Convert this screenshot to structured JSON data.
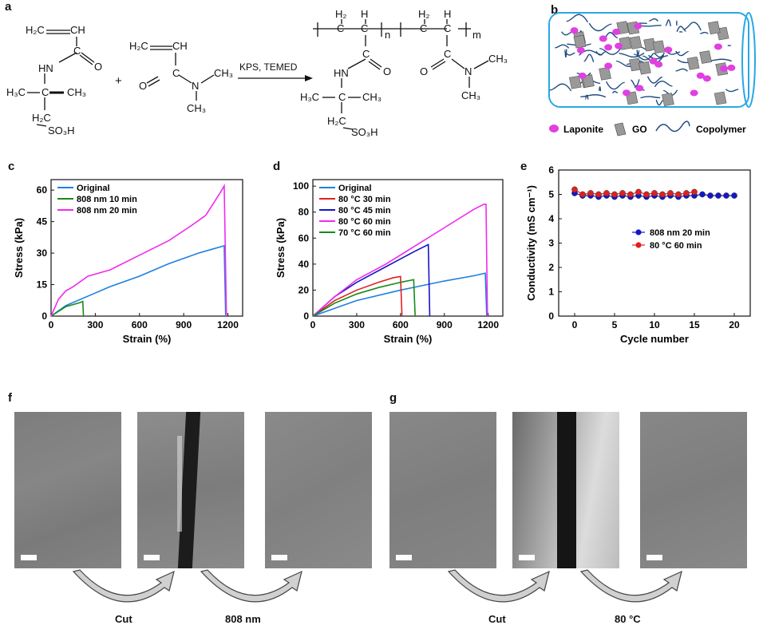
{
  "panel_labels": {
    "a": "a",
    "b": "b",
    "c": "c",
    "d": "d",
    "e": "e",
    "f": "f",
    "g": "g"
  },
  "scheme": {
    "monomer1": {
      "vinyl_left": "H₂C",
      "vinyl_right": "CH",
      "nh": "HN",
      "carbonyl_c": "C",
      "carbonyl_o": "O",
      "h3c": "H₃C",
      "quat_c": "C",
      "ch3": "CH₃",
      "h2c": "H₂C",
      "so3h": "SO₃H"
    },
    "plus": "+",
    "monomer2": {
      "vinyl_left": "H₂C",
      "vinyl_right": "CH",
      "o": "O",
      "c": "C",
      "n": "N",
      "ch3_right": "CH₃",
      "ch3_down": "CH₃"
    },
    "reagents": "KPS, TEMED",
    "polymer": {
      "h2_a": "H₂",
      "h_a": "H",
      "c1": "C",
      "c2": "C",
      "n": "n",
      "h2_b": "H₂",
      "h_b": "H",
      "c3": "C",
      "c4": "C",
      "m": "m",
      "c_amide": "C",
      "hn": "HN",
      "o_amide": "O",
      "h3c": "H₃C",
      "quat_c": "C",
      "ch3": "CH₃",
      "h2c": "H₂C",
      "so3h": "SO₃H",
      "o2": "O",
      "c_amide2": "C",
      "n2": "N",
      "ch3_right": "CH₃",
      "ch3_down": "CH₃"
    }
  },
  "legend_b": {
    "laponite": "Laponite",
    "go": "GO",
    "copolymer": "Copolymer"
  },
  "colors": {
    "original": "#1f7fe0",
    "green": "#1a8a1a",
    "magenta": "#f02af0",
    "red": "#e02020",
    "blue": "#1515c8",
    "network": "#1f4c80",
    "tube": "#2aa6e6",
    "laponite": "#e040e0"
  },
  "chart_data": [
    {
      "panel": "c",
      "type": "line",
      "xlabel": "Strain (%)",
      "ylabel": "Stress (kPa)",
      "xlim": [
        0,
        1300
      ],
      "ylim": [
        0,
        65
      ],
      "xticks": [
        0,
        300,
        600,
        900,
        1200
      ],
      "yticks": [
        0,
        15,
        30,
        45,
        60
      ],
      "legend": "top-left",
      "series": [
        {
          "name": "Original",
          "color": "#1f7fe0",
          "points": [
            [
              0,
              0
            ],
            [
              100,
              5
            ],
            [
              300,
              11
            ],
            [
              400,
              14
            ],
            [
              600,
              19
            ],
            [
              800,
              25
            ],
            [
              1000,
              30
            ],
            [
              1100,
              32
            ],
            [
              1175,
              33.5
            ],
            [
              1185,
              0
            ]
          ]
        },
        {
          "name": "808 nm 10 min",
          "color": "#1a8a1a",
          "points": [
            [
              0,
              0
            ],
            [
              100,
              4.5
            ],
            [
              200,
              6.5
            ],
            [
              215,
              7
            ],
            [
              220,
              0
            ]
          ]
        },
        {
          "name": "808 nm 20 min",
          "color": "#f02af0",
          "points": [
            [
              0,
              0
            ],
            [
              50,
              8
            ],
            [
              100,
              12
            ],
            [
              150,
              14
            ],
            [
              250,
              19
            ],
            [
              400,
              22
            ],
            [
              600,
              29
            ],
            [
              800,
              36
            ],
            [
              950,
              43
            ],
            [
              1050,
              48
            ],
            [
              1150,
              59
            ],
            [
              1175,
              62
            ],
            [
              1190,
              0
            ]
          ]
        }
      ]
    },
    {
      "panel": "d",
      "type": "line",
      "xlabel": "Strain (%)",
      "ylabel": "Stress (kPa)",
      "xlim": [
        0,
        1300
      ],
      "ylim": [
        0,
        105
      ],
      "xticks": [
        0,
        300,
        600,
        900,
        1200
      ],
      "yticks": [
        0,
        20,
        40,
        60,
        80,
        100
      ],
      "legend": "top-left",
      "series": [
        {
          "name": "Original",
          "color": "#1f7fe0",
          "points": [
            [
              0,
              0
            ],
            [
              300,
              12
            ],
            [
              600,
              20
            ],
            [
              900,
              27
            ],
            [
              1100,
              31
            ],
            [
              1180,
              33
            ],
            [
              1190,
              0
            ]
          ]
        },
        {
          "name": "80 °C 30 min",
          "color": "#e02020",
          "points": [
            [
              0,
              0
            ],
            [
              150,
              12
            ],
            [
              300,
              20
            ],
            [
              450,
              26
            ],
            [
              550,
              29.5
            ],
            [
              600,
              30.5
            ],
            [
              610,
              0
            ]
          ]
        },
        {
          "name": "80 °C 45 min",
          "color": "#1515c8",
          "points": [
            [
              0,
              0
            ],
            [
              150,
              15
            ],
            [
              300,
              26
            ],
            [
              500,
              38
            ],
            [
              700,
              50
            ],
            [
              790,
              55
            ],
            [
              800,
              0
            ]
          ]
        },
        {
          "name": "80 °C 60 min",
          "color": "#f02af0",
          "points": [
            [
              0,
              0
            ],
            [
              150,
              15
            ],
            [
              300,
              28
            ],
            [
              500,
              40
            ],
            [
              700,
              54
            ],
            [
              900,
              68
            ],
            [
              1100,
              82
            ],
            [
              1170,
              86
            ],
            [
              1185,
              86
            ],
            [
              1195,
              0
            ]
          ]
        },
        {
          "name": "70 °C 60 min",
          "color": "#1a8a1a",
          "points": [
            [
              0,
              0
            ],
            [
              150,
              10
            ],
            [
              300,
              17
            ],
            [
              450,
              22
            ],
            [
              600,
              26
            ],
            [
              690,
              28
            ],
            [
              700,
              0
            ]
          ]
        }
      ]
    },
    {
      "panel": "e",
      "type": "scatter",
      "xlabel": "Cycle number",
      "ylabel": "Conductivity (mS cm⁻¹)",
      "xlim": [
        -2,
        22
      ],
      "ylim": [
        0,
        6
      ],
      "xticks": [
        0,
        5,
        10,
        15,
        20
      ],
      "yticks": [
        0,
        1,
        2,
        3,
        4,
        5,
        6
      ],
      "legend": "center-right",
      "series": [
        {
          "name": "808 nm 20 min",
          "color": "#1515c8",
          "x": [
            0,
            1,
            2,
            3,
            4,
            5,
            6,
            7,
            8,
            9,
            10,
            11,
            12,
            13,
            14,
            15,
            16,
            17,
            18,
            19,
            20
          ],
          "y": [
            5.05,
            4.95,
            4.95,
            4.9,
            4.95,
            4.9,
            4.95,
            4.9,
            4.95,
            4.9,
            4.95,
            4.9,
            4.95,
            4.9,
            4.95,
            4.95,
            5.0,
            4.95,
            4.95,
            4.95,
            4.95
          ]
        },
        {
          "name": "80 °C  60 min",
          "color": "#e02020",
          "x": [
            0,
            1,
            2,
            3,
            4,
            5,
            6,
            7,
            8,
            9,
            10,
            11,
            12,
            13,
            14,
            15
          ],
          "y": [
            5.2,
            5.0,
            5.05,
            5.0,
            5.05,
            5.0,
            5.05,
            5.0,
            5.1,
            5.0,
            5.05,
            5.0,
            5.05,
            5.0,
            5.05,
            5.1
          ]
        }
      ]
    }
  ],
  "sem_f": {
    "arrow1": "Cut",
    "arrow2": "808 nm"
  },
  "sem_g": {
    "arrow1": "Cut",
    "arrow2": "80 °C"
  }
}
